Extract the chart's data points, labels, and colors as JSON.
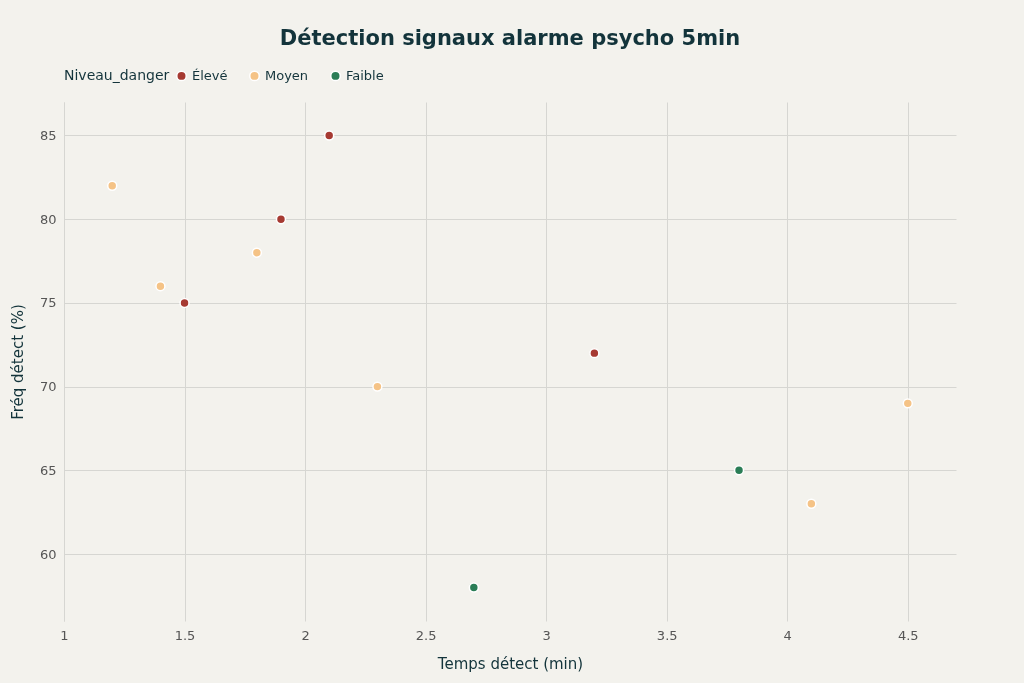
{
  "chart_data": {
    "type": "scatter",
    "title": "Détection signaux alarme psycho 5min",
    "xlabel": "Temps détect (min)",
    "ylabel": "Fréq détect (%)",
    "legend_title": "Niveau_danger",
    "legend": "top",
    "grid": true,
    "marker": "circle",
    "xlim": [
      1,
      4.7
    ],
    "xticks": [
      1,
      1.5,
      2,
      2.5,
      3,
      3.5,
      4,
      4.5
    ],
    "ylim": [
      56,
      87
    ],
    "yticks": [
      60,
      65,
      70,
      75,
      80,
      85
    ],
    "series": [
      {
        "name": "Élevé",
        "color": "#a63a32",
        "x": [
          2.1,
          1.9,
          1.5,
          3.2
        ],
        "values": [
          85,
          80,
          75,
          72
        ]
      },
      {
        "name": "Moyen",
        "color": "#f5c386",
        "x": [
          1.2,
          1.4,
          1.8,
          2.3,
          4.1,
          4.5
        ],
        "values": [
          82,
          76,
          78,
          70,
          63,
          69
        ]
      },
      {
        "name": "Faible",
        "color": "#2a7d56",
        "x": [
          2.7,
          3.8
        ],
        "values": [
          58,
          65
        ]
      }
    ]
  }
}
